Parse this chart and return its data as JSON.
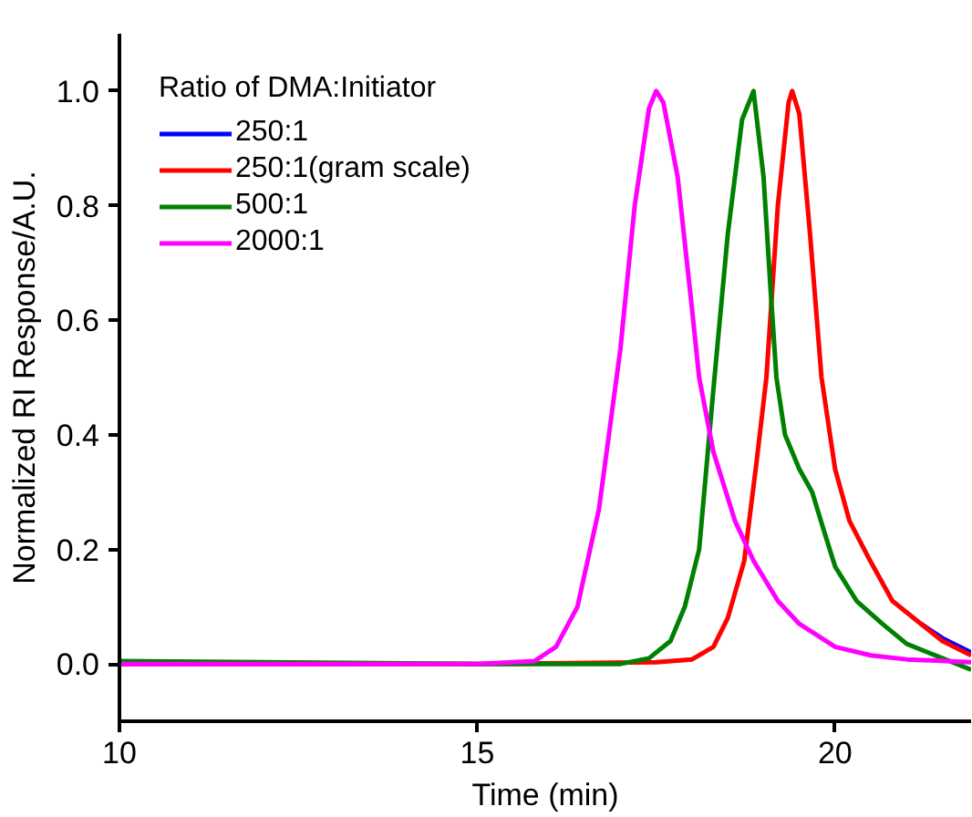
{
  "chart_data": {
    "type": "line",
    "xlabel": "Time (min)",
    "ylabel": "Normalized RI Response/A.U.",
    "legend_title": "Ratio of DMA:Initiator",
    "xlim": [
      10,
      21.9
    ],
    "ylim": [
      -0.1,
      1.1
    ],
    "xticks": [
      10,
      15,
      20
    ],
    "yticks": [
      {
        "value": 0,
        "label": "0.0"
      },
      0.2,
      0.4,
      0.6,
      0.8,
      {
        "value": 1,
        "label": "1.0"
      }
    ],
    "grid": false,
    "legend": "top left",
    "line_style": "solid",
    "marker": "none",
    "series": [
      {
        "name": "250:1",
        "color": "#0000ff",
        "x": [
          21.2,
          21.5,
          21.9
        ],
        "values": [
          0.07,
          0.045,
          0.02
        ]
      },
      {
        "name": "250:1(gram scale)",
        "color": "#ff0000",
        "x": [
          10,
          15,
          17.5,
          18.0,
          18.3,
          18.5,
          18.73,
          18.9,
          19.04,
          19.2,
          19.35,
          19.4,
          19.5,
          19.65,
          19.81,
          20.0,
          20.2,
          20.49,
          20.8,
          21.2,
          21.5,
          21.9
        ],
        "values": [
          0,
          0,
          0.003,
          0.008,
          0.03,
          0.08,
          0.18,
          0.35,
          0.5,
          0.8,
          0.98,
          1.0,
          0.96,
          0.75,
          0.5,
          0.34,
          0.25,
          0.18,
          0.11,
          0.07,
          0.04,
          0.015
        ]
      },
      {
        "name": "500:1",
        "color": "#008000",
        "x": [
          10,
          12,
          15,
          17.0,
          17.4,
          17.7,
          17.9,
          18.1,
          18.3,
          18.5,
          18.7,
          18.86,
          19.0,
          19.1,
          19.18,
          19.3,
          19.5,
          19.68,
          19.85,
          20.0,
          20.3,
          20.66,
          21.0,
          21.5,
          21.9
        ],
        "values": [
          0.005,
          0.003,
          0,
          0,
          0.01,
          0.04,
          0.1,
          0.2,
          0.48,
          0.75,
          0.95,
          1.0,
          0.85,
          0.65,
          0.5,
          0.4,
          0.34,
          0.3,
          0.23,
          0.17,
          0.11,
          0.07,
          0.035,
          0.01,
          -0.01
        ]
      },
      {
        "name": "2000:1",
        "color": "#ff00ff",
        "x": [
          10,
          12,
          15,
          15.8,
          16.1,
          16.4,
          16.7,
          17.0,
          17.2,
          17.4,
          17.5,
          17.6,
          17.8,
          18.0,
          18.1,
          18.3,
          18.6,
          18.86,
          19.2,
          19.5,
          20.0,
          20.5,
          21.0,
          21.9
        ],
        "values": [
          0,
          0,
          0,
          0.005,
          0.03,
          0.1,
          0.27,
          0.55,
          0.8,
          0.97,
          1.0,
          0.98,
          0.85,
          0.62,
          0.5,
          0.37,
          0.25,
          0.18,
          0.11,
          0.07,
          0.03,
          0.015,
          0.008,
          0.003
        ]
      }
    ]
  }
}
